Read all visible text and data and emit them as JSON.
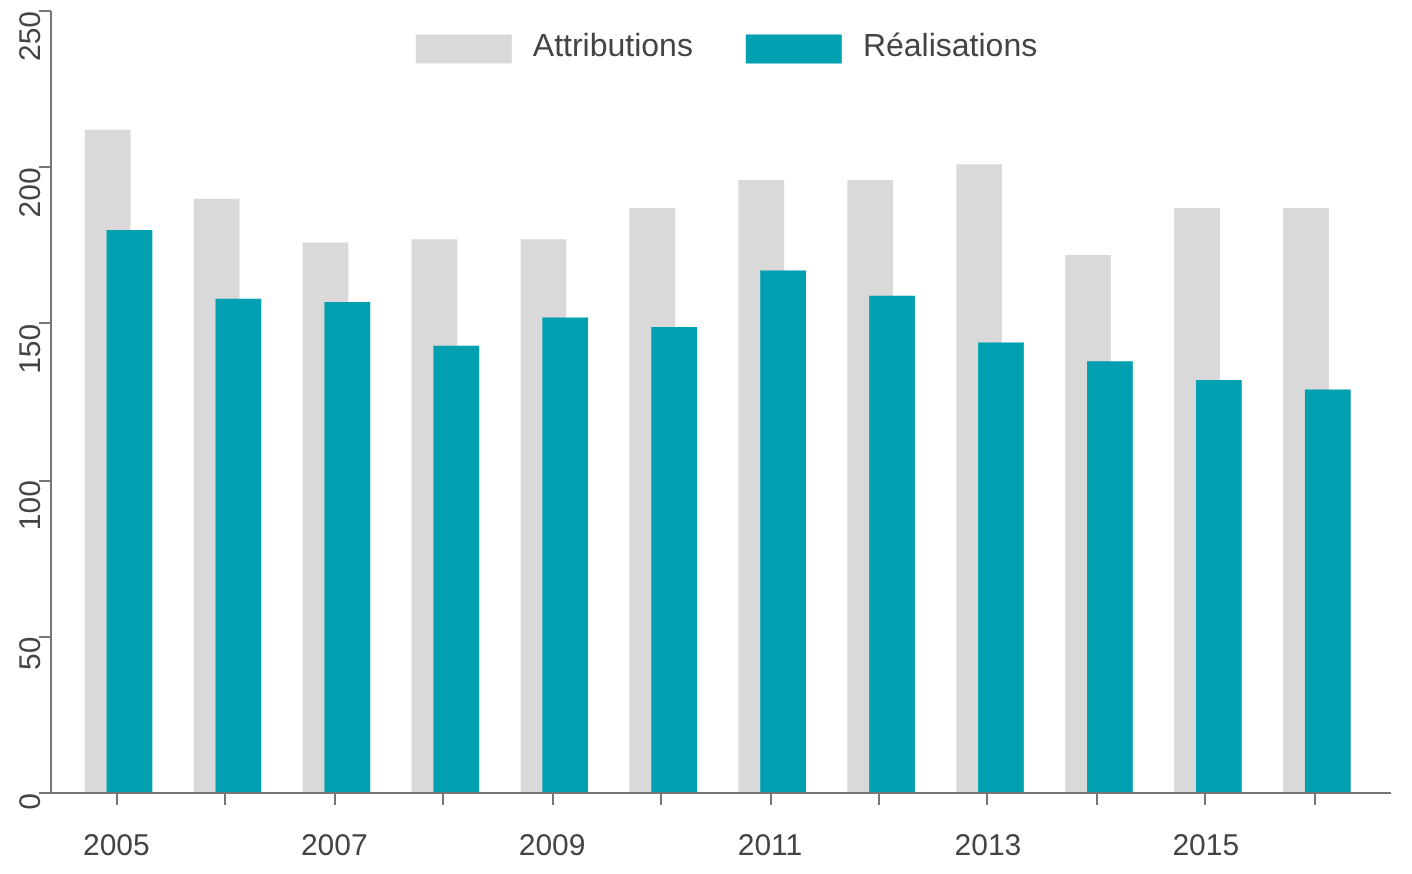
{
  "chart_data": {
    "type": "bar",
    "categories": [
      "2005",
      null,
      "2007",
      null,
      "2009",
      null,
      "2011",
      null,
      "2013",
      null,
      "2015",
      null
    ],
    "series": [
      {
        "name": "Attributions",
        "color": "#d9d9d9",
        "values": [
          212,
          190,
          176,
          177,
          177,
          187,
          196,
          196,
          201,
          172,
          187,
          187
        ]
      },
      {
        "name": "Réalisations",
        "color": "#00a0b0",
        "values": [
          180,
          158,
          157,
          143,
          152,
          149,
          167,
          159,
          144,
          138,
          132,
          129
        ]
      }
    ],
    "ylim": [
      0,
      250
    ],
    "yticks": [
      0,
      50,
      100,
      150,
      200,
      250
    ],
    "grid": false,
    "legend": "top"
  }
}
